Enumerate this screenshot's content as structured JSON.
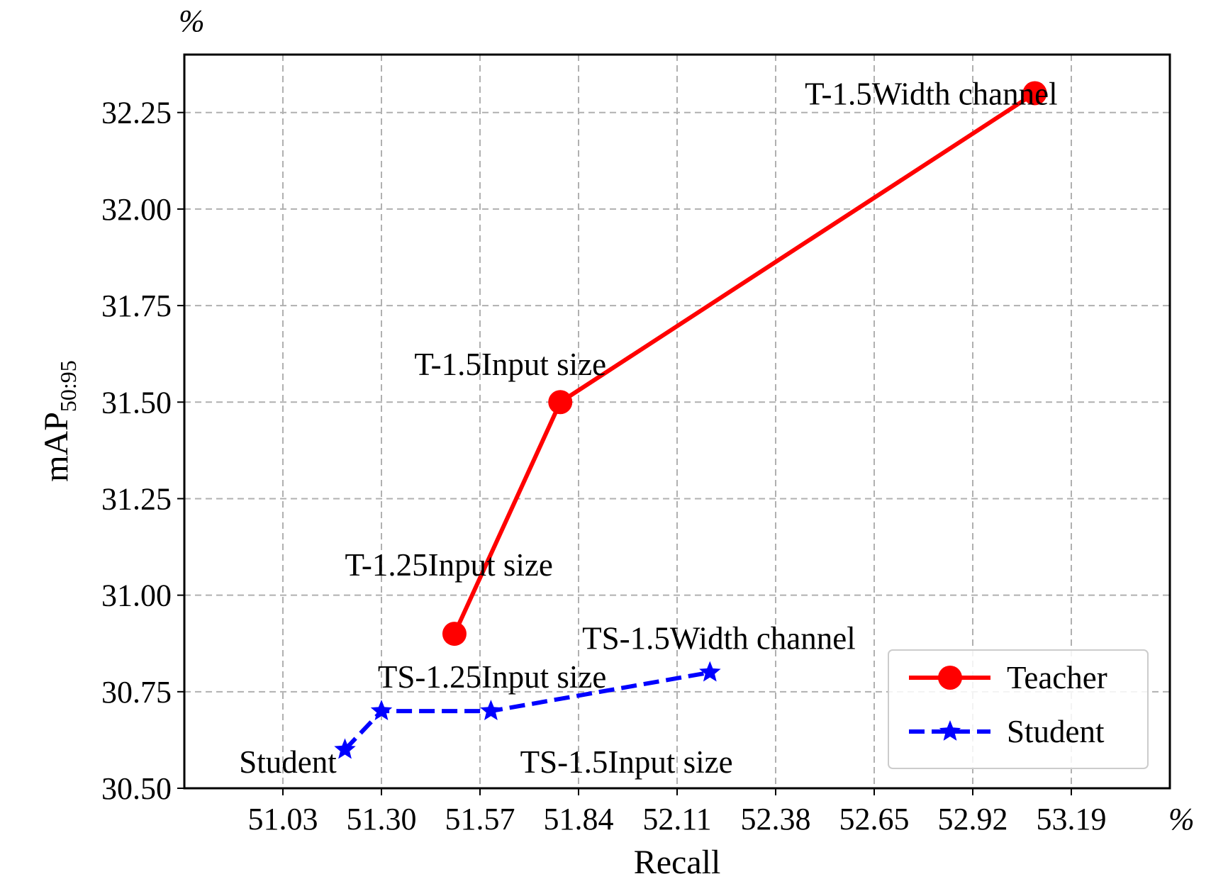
{
  "chart_data": {
    "type": "line",
    "xlabel": "Recall",
    "ylabel": "mAP",
    "ylabel_subscript": "50:95",
    "x_unit": "%",
    "y_unit": "%",
    "xlim": [
      50.76,
      53.46
    ],
    "ylim": [
      30.5,
      32.4
    ],
    "x_ticks": [
      "51.03",
      "51.30",
      "51.57",
      "51.84",
      "52.11",
      "52.38",
      "52.65",
      "52.92",
      "53.19"
    ],
    "y_ticks": [
      "30.50",
      "30.75",
      "31.00",
      "31.25",
      "31.50",
      "31.75",
      "32.00",
      "32.25"
    ],
    "grid": true,
    "legend_position": "bottom-right",
    "series": [
      {
        "name": "Teacher",
        "color": "#ff0000",
        "marker": "circle",
        "line_style": "solid",
        "x": [
          51.5,
          51.79,
          53.09
        ],
        "y": [
          30.9,
          31.5,
          32.3
        ]
      },
      {
        "name": "Student",
        "color": "#0000ff",
        "marker": "star",
        "line_style": "dashed",
        "x": [
          51.2,
          51.3,
          51.6,
          52.2
        ],
        "y": [
          30.6,
          30.7,
          30.7,
          30.8
        ]
      }
    ],
    "annotations": [
      {
        "text": "T-1.5Width channel",
        "x": 52.46,
        "y": 32.3
      },
      {
        "text": "T-1.5Input size",
        "x": 51.39,
        "y": 31.6
      },
      {
        "text": "T-1.25Input size",
        "x": 51.2,
        "y": 31.08
      },
      {
        "text": "TS-1.5Width channel",
        "x": 51.85,
        "y": 30.89
      },
      {
        "text": "TS-1.25Input size",
        "x": 51.29,
        "y": 30.79
      },
      {
        "text": "Student",
        "x": 50.91,
        "y": 30.57
      },
      {
        "text": "TS-1.5Input size",
        "x": 51.68,
        "y": 30.57
      }
    ]
  }
}
